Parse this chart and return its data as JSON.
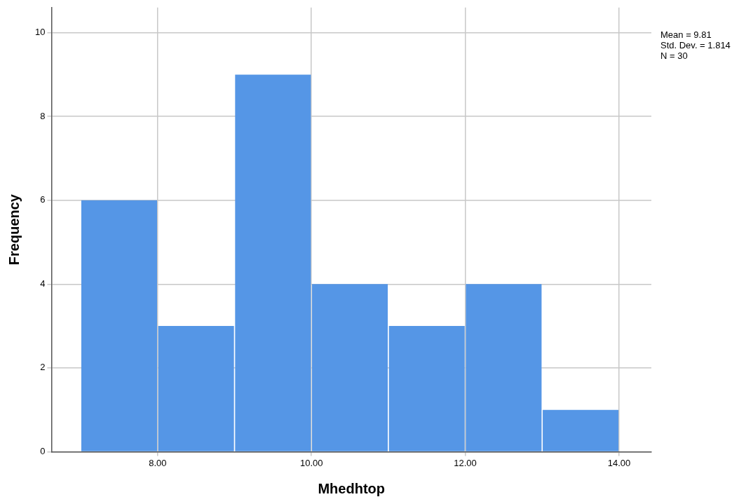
{
  "chart_data": {
    "type": "histogram",
    "xlabel": "Mhedhtop",
    "ylabel": "Frequency",
    "bins": [
      7,
      8,
      9,
      10,
      11,
      12,
      13,
      14
    ],
    "values": [
      6,
      3,
      9,
      4,
      3,
      4,
      1
    ],
    "color": "#5596e6",
    "xlim": [
      6.62,
      14.42
    ],
    "xticks": [
      {
        "value": 8,
        "label": "8.00"
      },
      {
        "value": 10,
        "label": "10.00"
      },
      {
        "value": 12,
        "label": "12.00"
      },
      {
        "value": 14,
        "label": "14.00"
      }
    ],
    "ylim": [
      0,
      10.6
    ],
    "yticks": [
      0,
      2,
      4,
      6,
      8,
      10
    ],
    "grid": true,
    "annotations": [
      "Mean = 9.81",
      "Std. Dev. = 1.814",
      "N = 30"
    ]
  }
}
